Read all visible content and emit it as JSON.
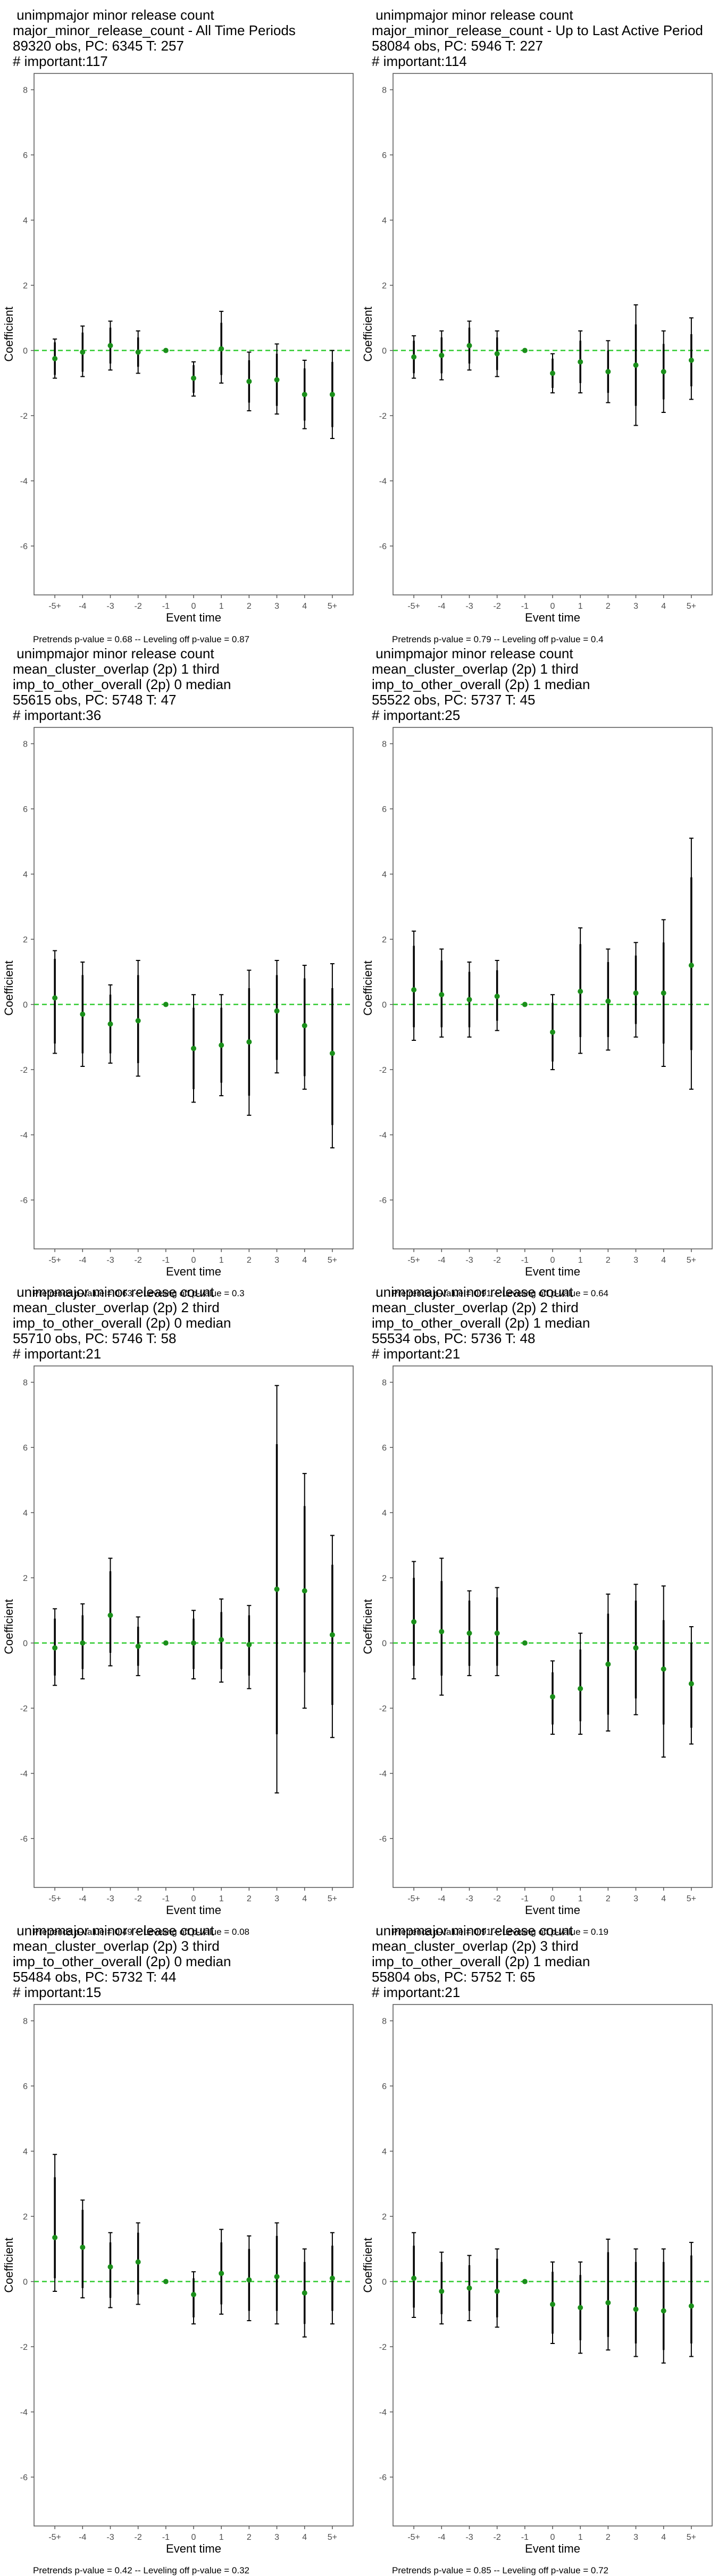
{
  "chart_data": [
    {
      "type": "scatter",
      "title_lines": [
        " unimpmajor minor release count",
        "major_minor_release_count - All Time Periods",
        "89320 obs, PC: 6345 T: 257",
        "# important:117"
      ],
      "xlabel": "Event time",
      "ylabel": "Coefficient",
      "categories": [
        "-5+",
        "-4",
        "-3",
        "-2",
        "-1",
        "0",
        "1",
        "2",
        "3",
        "4",
        "5+"
      ],
      "ylim": [
        -7.5,
        8.5
      ],
      "yticks": [
        -6,
        -4,
        -2,
        0,
        2,
        4,
        6,
        8
      ],
      "estimates": [
        -0.25,
        -0.05,
        0.15,
        -0.05,
        0.0,
        -0.85,
        0.05,
        -0.95,
        -0.9,
        -1.35,
        -1.35
      ],
      "ci95": [
        [
          -0.85,
          0.35
        ],
        [
          -0.8,
          0.75
        ],
        [
          -0.6,
          0.9
        ],
        [
          -0.7,
          0.6
        ],
        [
          0.0,
          0.0
        ],
        [
          -1.4,
          -0.35
        ],
        [
          -1.0,
          1.2
        ],
        [
          -1.85,
          -0.05
        ],
        [
          -1.95,
          0.2
        ],
        [
          -2.4,
          -0.3
        ],
        [
          -2.7,
          0.0
        ]
      ],
      "ci90": [
        [
          -0.75,
          0.25
        ],
        [
          -0.65,
          0.55
        ],
        [
          -0.4,
          0.7
        ],
        [
          -0.5,
          0.4
        ],
        [
          0.0,
          0.0
        ],
        [
          -1.3,
          -0.45
        ],
        [
          -0.75,
          0.85
        ],
        [
          -1.6,
          -0.3
        ],
        [
          -1.7,
          -0.1
        ],
        [
          -2.15,
          -0.55
        ],
        [
          -2.35,
          -0.35
        ]
      ],
      "caption": "Pretrends p-value = 0.68 -- Leveling off p-value = 0.87"
    },
    {
      "type": "scatter",
      "title_lines": [
        " unimpmajor minor release count",
        "major_minor_release_count - Up to Last Active Period",
        "58084 obs, PC: 5946 T: 227",
        "# important:114"
      ],
      "xlabel": "Event time",
      "ylabel": "Coefficient",
      "categories": [
        "-5+",
        "-4",
        "-3",
        "-2",
        "-1",
        "0",
        "1",
        "2",
        "3",
        "4",
        "5+"
      ],
      "ylim": [
        -7.5,
        8.5
      ],
      "yticks": [
        -6,
        -4,
        -2,
        0,
        2,
        4,
        6,
        8
      ],
      "estimates": [
        -0.2,
        -0.15,
        0.15,
        -0.1,
        0.0,
        -0.7,
        -0.35,
        -0.65,
        -0.45,
        -0.65,
        -0.3
      ],
      "ci95": [
        [
          -0.85,
          0.45
        ],
        [
          -0.9,
          0.6
        ],
        [
          -0.6,
          0.9
        ],
        [
          -0.8,
          0.6
        ],
        [
          0.0,
          0.0
        ],
        [
          -1.3,
          -0.1
        ],
        [
          -1.3,
          0.6
        ],
        [
          -1.6,
          0.3
        ],
        [
          -2.3,
          1.4
        ],
        [
          -1.9,
          0.6
        ],
        [
          -1.5,
          1.0
        ]
      ],
      "ci90": [
        [
          -0.7,
          0.3
        ],
        [
          -0.7,
          0.4
        ],
        [
          -0.4,
          0.7
        ],
        [
          -0.6,
          0.4
        ],
        [
          0.0,
          0.0
        ],
        [
          -1.15,
          -0.25
        ],
        [
          -1.0,
          0.3
        ],
        [
          -1.3,
          0.0
        ],
        [
          -1.7,
          0.8
        ],
        [
          -1.5,
          0.2
        ],
        [
          -1.1,
          0.5
        ]
      ],
      "caption": "Pretrends p-value = 0.79 -- Leveling off p-value = 0.4"
    },
    {
      "type": "scatter",
      "title_lines": [
        " unimpmajor minor release count",
        "mean_cluster_overlap (2p) 1 third",
        "imp_to_other_overall (2p) 0 median",
        "55615 obs, PC: 5748 T: 47",
        "# important:36"
      ],
      "xlabel": "Event time",
      "ylabel": "Coefficient",
      "categories": [
        "-5+",
        "-4",
        "-3",
        "-2",
        "-1",
        "0",
        "1",
        "2",
        "3",
        "4",
        "5+"
      ],
      "ylim": [
        -7.5,
        8.5
      ],
      "yticks": [
        -6,
        -4,
        -2,
        0,
        2,
        4,
        6,
        8
      ],
      "estimates": [
        0.2,
        -0.3,
        -0.6,
        -0.5,
        0.0,
        -1.35,
        -1.25,
        -1.15,
        -0.2,
        -0.65,
        -1.5
      ],
      "ci95": [
        [
          -1.5,
          1.65
        ],
        [
          -1.9,
          1.3
        ],
        [
          -1.8,
          0.6
        ],
        [
          -2.2,
          1.35
        ],
        [
          0.0,
          0.0
        ],
        [
          -3.0,
          0.3
        ],
        [
          -2.8,
          0.3
        ],
        [
          -3.4,
          1.05
        ],
        [
          -2.1,
          1.35
        ],
        [
          -2.6,
          1.2
        ],
        [
          -4.4,
          1.25
        ]
      ],
      "ci90": [
        [
          -1.2,
          1.4
        ],
        [
          -1.5,
          0.9
        ],
        [
          -1.5,
          0.3
        ],
        [
          -1.8,
          0.9
        ],
        [
          0.0,
          0.0
        ],
        [
          -2.6,
          -0.1
        ],
        [
          -2.4,
          -0.1
        ],
        [
          -2.8,
          0.5
        ],
        [
          -1.7,
          0.9
        ],
        [
          -2.2,
          0.8
        ],
        [
          -3.7,
          0.5
        ]
      ],
      "caption": "Pretrends p-value = 0.63 -- Leveling off p-value = 0.3"
    },
    {
      "type": "scatter",
      "title_lines": [
        " unimpmajor minor release count",
        "mean_cluster_overlap (2p) 1 third",
        "imp_to_other_overall (2p) 1 median",
        "55522 obs, PC: 5737 T: 45",
        "# important:25"
      ],
      "xlabel": "Event time",
      "ylabel": "Coefficient",
      "categories": [
        "-5+",
        "-4",
        "-3",
        "-2",
        "-1",
        "0",
        "1",
        "2",
        "3",
        "4",
        "5+"
      ],
      "ylim": [
        -7.5,
        8.5
      ],
      "yticks": [
        -6,
        -4,
        -2,
        0,
        2,
        4,
        6,
        8
      ],
      "estimates": [
        0.45,
        0.3,
        0.15,
        0.25,
        0.0,
        -0.85,
        0.4,
        0.1,
        0.35,
        0.35,
        1.2
      ],
      "ci95": [
        [
          -1.1,
          2.25
        ],
        [
          -1.0,
          1.7
        ],
        [
          -1.0,
          1.3
        ],
        [
          -0.8,
          1.35
        ],
        [
          0.0,
          0.0
        ],
        [
          -2.0,
          0.3
        ],
        [
          -1.5,
          2.35
        ],
        [
          -1.4,
          1.7
        ],
        [
          -1.0,
          1.9
        ],
        [
          -1.9,
          2.6
        ],
        [
          -2.6,
          5.1
        ]
      ],
      "ci90": [
        [
          -0.7,
          1.8
        ],
        [
          -0.7,
          1.35
        ],
        [
          -0.7,
          1.0
        ],
        [
          -0.5,
          1.05
        ],
        [
          0.0,
          0.0
        ],
        [
          -1.75,
          0.05
        ],
        [
          -1.0,
          1.85
        ],
        [
          -1.0,
          1.3
        ],
        [
          -0.6,
          1.5
        ],
        [
          -1.2,
          1.9
        ],
        [
          -1.4,
          3.9
        ]
      ],
      "caption": "Pretrends p-value = 0.91 -- Leveling off p-value = 0.64"
    },
    {
      "type": "scatter",
      "title_lines": [
        " unimpmajor minor release count",
        "mean_cluster_overlap (2p) 2 third",
        "imp_to_other_overall (2p) 0 median",
        "55710 obs, PC: 5746 T: 58",
        "# important:21"
      ],
      "xlabel": "Event time",
      "ylabel": "Coefficient",
      "categories": [
        "-5+",
        "-4",
        "-3",
        "-2",
        "-1",
        "0",
        "1",
        "2",
        "3",
        "4",
        "5+"
      ],
      "ylim": [
        -7.5,
        8.5
      ],
      "yticks": [
        -6,
        -4,
        -2,
        0,
        2,
        4,
        6,
        8
      ],
      "estimates": [
        -0.15,
        0.0,
        0.85,
        -0.1,
        0.0,
        0.0,
        0.1,
        -0.05,
        1.65,
        1.6,
        0.25
      ],
      "ci95": [
        [
          -1.3,
          1.05
        ],
        [
          -1.1,
          1.2
        ],
        [
          -0.7,
          2.6
        ],
        [
          -1.0,
          0.8
        ],
        [
          0.0,
          0.0
        ],
        [
          -1.1,
          1.0
        ],
        [
          -1.2,
          1.35
        ],
        [
          -1.4,
          1.15
        ],
        [
          -4.6,
          7.9
        ],
        [
          -2.0,
          5.2
        ],
        [
          -2.9,
          3.3
        ]
      ],
      "ci90": [
        [
          -1.0,
          0.75
        ],
        [
          -0.8,
          0.85
        ],
        [
          -0.3,
          2.2
        ],
        [
          -0.7,
          0.5
        ],
        [
          0.0,
          0.0
        ],
        [
          -0.8,
          0.75
        ],
        [
          -0.8,
          0.95
        ],
        [
          -1.0,
          0.85
        ],
        [
          -2.8,
          6.1
        ],
        [
          -0.9,
          4.2
        ],
        [
          -1.9,
          2.4
        ]
      ],
      "caption": "Pretrends p-value = 0.49 -- Leveling off p-value = 0.08"
    },
    {
      "type": "scatter",
      "title_lines": [
        " unimpmajor minor release count",
        "mean_cluster_overlap (2p) 2 third",
        "imp_to_other_overall (2p) 1 median",
        "55534 obs, PC: 5736 T: 48",
        "# important:21"
      ],
      "xlabel": "Event time",
      "ylabel": "Coefficient",
      "categories": [
        "-5+",
        "-4",
        "-3",
        "-2",
        "-1",
        "0",
        "1",
        "2",
        "3",
        "4",
        "5+"
      ],
      "ylim": [
        -7.5,
        8.5
      ],
      "yticks": [
        -6,
        -4,
        -2,
        0,
        2,
        4,
        6,
        8
      ],
      "estimates": [
        0.65,
        0.35,
        0.3,
        0.3,
        0.0,
        -1.65,
        -1.4,
        -0.65,
        -0.15,
        -0.8,
        -1.25
      ],
      "ci95": [
        [
          -1.1,
          2.5
        ],
        [
          -1.6,
          2.6
        ],
        [
          -1.0,
          1.6
        ],
        [
          -1.0,
          1.7
        ],
        [
          0.0,
          0.0
        ],
        [
          -2.8,
          -0.55
        ],
        [
          -2.8,
          0.3
        ],
        [
          -2.7,
          1.5
        ],
        [
          -2.2,
          1.8
        ],
        [
          -3.5,
          1.75
        ],
        [
          -3.1,
          0.5
        ]
      ],
      "ci90": [
        [
          -0.7,
          2.0
        ],
        [
          -1.0,
          1.9
        ],
        [
          -0.7,
          1.3
        ],
        [
          -0.7,
          1.4
        ],
        [
          0.0,
          0.0
        ],
        [
          -2.5,
          -0.9
        ],
        [
          -2.4,
          -0.2
        ],
        [
          -2.2,
          0.9
        ],
        [
          -1.7,
          1.3
        ],
        [
          -2.5,
          0.7
        ],
        [
          -2.6,
          0.0
        ]
      ],
      "caption": "Pretrends p-value = 0.91 -- Leveling off p-value = 0.19"
    },
    {
      "type": "scatter",
      "title_lines": [
        " unimpmajor minor release count",
        "mean_cluster_overlap (2p) 3 third",
        "imp_to_other_overall (2p) 0 median",
        "55484 obs, PC: 5732 T: 44",
        "# important:15"
      ],
      "xlabel": "Event time",
      "ylabel": "Coefficient",
      "categories": [
        "-5+",
        "-4",
        "-3",
        "-2",
        "-1",
        "0",
        "1",
        "2",
        "3",
        "4",
        "5+"
      ],
      "ylim": [
        -7.5,
        8.5
      ],
      "yticks": [
        -6,
        -4,
        -2,
        0,
        2,
        4,
        6,
        8
      ],
      "estimates": [
        1.35,
        1.05,
        0.45,
        0.6,
        0.0,
        -0.4,
        0.25,
        0.05,
        0.15,
        -0.35,
        0.1
      ],
      "ci95": [
        [
          -0.3,
          3.9
        ],
        [
          -0.5,
          2.5
        ],
        [
          -0.8,
          1.5
        ],
        [
          -0.7,
          1.8
        ],
        [
          0.0,
          0.0
        ],
        [
          -1.3,
          0.3
        ],
        [
          -1.0,
          1.6
        ],
        [
          -1.2,
          1.4
        ],
        [
          -1.3,
          1.8
        ],
        [
          -1.7,
          1.0
        ],
        [
          -1.3,
          1.5
        ]
      ],
      "ci90": [
        [
          0.1,
          3.2
        ],
        [
          -0.2,
          2.2
        ],
        [
          -0.5,
          1.2
        ],
        [
          -0.4,
          1.5
        ],
        [
          0.0,
          0.0
        ],
        [
          -1.1,
          0.1
        ],
        [
          -0.7,
          1.2
        ],
        [
          -0.9,
          1.0
        ],
        [
          -0.9,
          1.4
        ],
        [
          -1.3,
          0.6
        ],
        [
          -0.9,
          1.1
        ]
      ],
      "caption": "Pretrends p-value = 0.42 -- Leveling off p-value = 0.32"
    },
    {
      "type": "scatter",
      "title_lines": [
        " unimpmajor minor release count",
        "mean_cluster_overlap (2p) 3 third",
        "imp_to_other_overall (2p) 1 median",
        "55804 obs, PC: 5752 T: 65",
        "# important:21"
      ],
      "xlabel": "Event time",
      "ylabel": "Coefficient",
      "categories": [
        "-5+",
        "-4",
        "-3",
        "-2",
        "-1",
        "0",
        "1",
        "2",
        "3",
        "4",
        "5+"
      ],
      "ylim": [
        -7.5,
        8.5
      ],
      "yticks": [
        -6,
        -4,
        -2,
        0,
        2,
        4,
        6,
        8
      ],
      "estimates": [
        0.1,
        -0.3,
        -0.2,
        -0.3,
        0.0,
        -0.7,
        -0.8,
        -0.65,
        -0.85,
        -0.9,
        -0.75
      ],
      "ci95": [
        [
          -1.1,
          1.5
        ],
        [
          -1.3,
          0.9
        ],
        [
          -1.2,
          0.8
        ],
        [
          -1.4,
          1.0
        ],
        [
          0.0,
          0.0
        ],
        [
          -1.9,
          0.6
        ],
        [
          -2.2,
          0.6
        ],
        [
          -2.1,
          1.3
        ],
        [
          -2.3,
          1.0
        ],
        [
          -2.5,
          1.0
        ],
        [
          -2.3,
          1.2
        ]
      ],
      "ci90": [
        [
          -0.8,
          1.1
        ],
        [
          -1.0,
          0.6
        ],
        [
          -0.9,
          0.5
        ],
        [
          -1.1,
          0.7
        ],
        [
          0.0,
          0.0
        ],
        [
          -1.6,
          0.3
        ],
        [
          -1.8,
          0.2
        ],
        [
          -1.7,
          0.9
        ],
        [
          -1.9,
          0.6
        ],
        [
          -2.1,
          0.6
        ],
        [
          -1.9,
          0.8
        ]
      ],
      "caption": "Pretrends p-value = 0.85 -- Leveling off p-value = 0.72"
    }
  ],
  "colors": {
    "point": "#1a8f1a",
    "zero_line": "#33cc33",
    "error_bar": "#000000",
    "frame": "#555555"
  }
}
